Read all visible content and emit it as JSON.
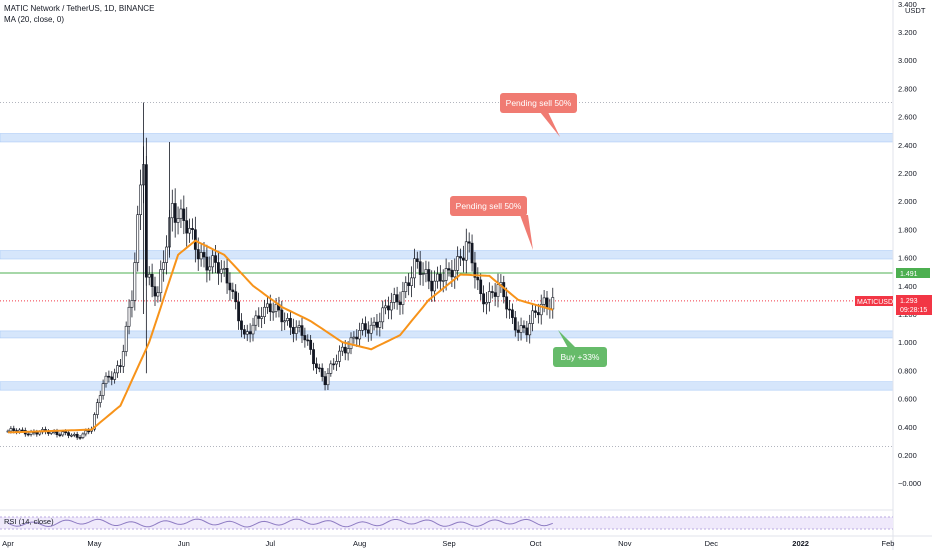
{
  "header": {
    "title": "MATIC Network / TetherUS, 1D, BINANCE",
    "indicator": "MA (20, close, 0)",
    "rsi_label": "RSI (14, close)"
  },
  "axis": {
    "currency": "USDT",
    "y_ticks": [
      "3.400",
      "3.200",
      "3.000",
      "2.800",
      "2.600",
      "2.400",
      "2.200",
      "2.000",
      "1.800",
      "1.600",
      "1.400",
      "1.200",
      "1.000",
      "0.800",
      "0.600",
      "0.400",
      "0.200",
      "−0.000"
    ],
    "x_ticks": [
      {
        "label": "Apr",
        "bold": false
      },
      {
        "label": "May",
        "bold": false
      },
      {
        "label": "Jun",
        "bold": false
      },
      {
        "label": "Jul",
        "bold": false
      },
      {
        "label": "Aug",
        "bold": false
      },
      {
        "label": "Sep",
        "bold": false
      },
      {
        "label": "Oct",
        "bold": false
      },
      {
        "label": "Nov",
        "bold": false
      },
      {
        "label": "Dec",
        "bold": false
      },
      {
        "label": "2022",
        "bold": true
      },
      {
        "label": "Feb",
        "bold": false
      }
    ]
  },
  "price_tags": {
    "green_line": "1.491",
    "symbol": "MATICUSDT",
    "last_price": "1.293",
    "countdown": "09:28:15"
  },
  "callouts": {
    "sell_top": "Pending sell 50%",
    "sell_mid": "Pending sell 50%",
    "buy": "Buy +33%"
  },
  "colors": {
    "up": "#ffffff",
    "down": "#131722",
    "ma": "#f7931a",
    "zone": "#d6e6fb",
    "green_line": "#4caf50",
    "sell_callout": "#f07b72",
    "buy_callout": "#66bb6a",
    "last_price_tag": "#f23645",
    "rsi_line": "#8e7cc3"
  },
  "chart_data": {
    "type": "candlestick",
    "symbol": "MATICUSDT",
    "interval": "1D",
    "ylim": [
      0.0,
      3.4
    ],
    "x_start": "2021-04-01",
    "x_end": "2022-02-01",
    "support_resistance_zones": [
      [
        2.42,
        2.48
      ],
      [
        1.59,
        1.65
      ],
      [
        1.03,
        1.08
      ],
      [
        0.66,
        0.72
      ]
    ],
    "horizontal_lines": [
      {
        "value": 1.491,
        "color": "green"
      },
      {
        "value": 2.7,
        "style": "dotted"
      },
      {
        "value": 0.26,
        "style": "dotted"
      }
    ],
    "close_anchors": [
      {
        "date": "2021-04-01",
        "close": 0.37
      },
      {
        "date": "2021-04-10",
        "close": 0.36
      },
      {
        "date": "2021-04-20",
        "close": 0.36
      },
      {
        "date": "2021-04-25",
        "close": 0.32
      },
      {
        "date": "2021-04-30",
        "close": 0.4
      },
      {
        "date": "2021-05-04",
        "close": 0.7
      },
      {
        "date": "2021-05-10",
        "close": 0.85
      },
      {
        "date": "2021-05-14",
        "close": 1.3
      },
      {
        "date": "2021-05-18",
        "close": 2.4
      },
      {
        "date": "2021-05-19",
        "close": 1.5
      },
      {
        "date": "2021-05-23",
        "close": 1.3
      },
      {
        "date": "2021-05-28",
        "close": 2.0
      },
      {
        "date": "2021-06-03",
        "close": 1.75
      },
      {
        "date": "2021-06-10",
        "close": 1.55
      },
      {
        "date": "2021-06-17",
        "close": 1.45
      },
      {
        "date": "2021-06-22",
        "close": 1.0
      },
      {
        "date": "2021-06-28",
        "close": 1.25
      },
      {
        "date": "2021-07-06",
        "close": 1.18
      },
      {
        "date": "2021-07-13",
        "close": 1.02
      },
      {
        "date": "2021-07-20",
        "close": 0.72
      },
      {
        "date": "2021-07-26",
        "close": 0.96
      },
      {
        "date": "2021-08-05",
        "close": 1.12
      },
      {
        "date": "2021-08-14",
        "close": 1.3
      },
      {
        "date": "2021-08-20",
        "close": 1.52
      },
      {
        "date": "2021-08-26",
        "close": 1.45
      },
      {
        "date": "2021-09-01",
        "close": 1.45
      },
      {
        "date": "2021-09-07",
        "close": 1.72
      },
      {
        "date": "2021-09-12",
        "close": 1.3
      },
      {
        "date": "2021-09-18",
        "close": 1.4
      },
      {
        "date": "2021-09-23",
        "close": 1.15
      },
      {
        "date": "2021-09-28",
        "close": 1.08
      },
      {
        "date": "2021-10-04",
        "close": 1.3
      },
      {
        "date": "2021-10-07",
        "close": 1.293
      }
    ],
    "ma20_anchors": [
      {
        "date": "2021-04-01",
        "value": 0.36
      },
      {
        "date": "2021-04-30",
        "value": 0.38
      },
      {
        "date": "2021-05-10",
        "value": 0.55
      },
      {
        "date": "2021-05-20",
        "value": 1.0
      },
      {
        "date": "2021-05-30",
        "value": 1.62
      },
      {
        "date": "2021-06-05",
        "value": 1.72
      },
      {
        "date": "2021-06-15",
        "value": 1.62
      },
      {
        "date": "2021-06-25",
        "value": 1.4
      },
      {
        "date": "2021-07-05",
        "value": 1.25
      },
      {
        "date": "2021-07-15",
        "value": 1.15
      },
      {
        "date": "2021-07-26",
        "value": 1.0
      },
      {
        "date": "2021-08-05",
        "value": 0.95
      },
      {
        "date": "2021-08-15",
        "value": 1.05
      },
      {
        "date": "2021-08-25",
        "value": 1.3
      },
      {
        "date": "2021-09-05",
        "value": 1.48
      },
      {
        "date": "2021-09-15",
        "value": 1.47
      },
      {
        "date": "2021-09-25",
        "value": 1.3
      },
      {
        "date": "2021-10-07",
        "value": 1.23
      }
    ]
  }
}
